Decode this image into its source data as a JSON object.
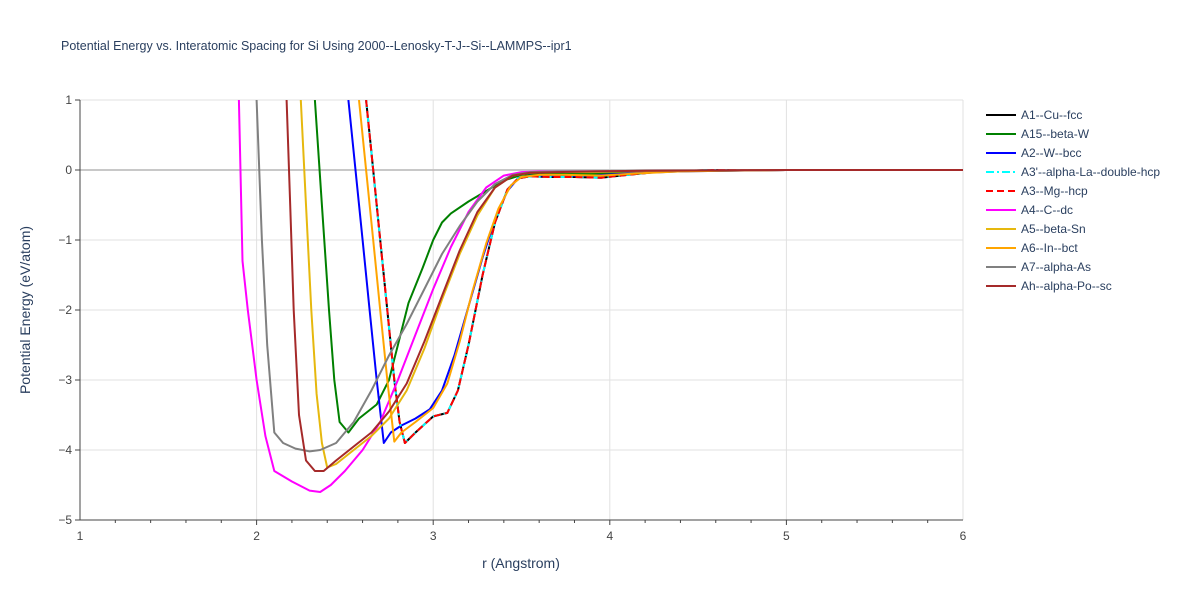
{
  "chart_data": {
    "type": "line",
    "title": "Potential Energy vs. Interatomic Spacing for Si Using 2000--Lenosky-T-J--Si--LAMMPS--ipr1",
    "xlabel": "r (Angstrom)",
    "ylabel": "Potential Energy (eV/atom)",
    "xlim": [
      1,
      6
    ],
    "ylim": [
      -5,
      1
    ],
    "x_ticks": [
      "1",
      "2",
      "3",
      "4",
      "5",
      "6"
    ],
    "y_ticks": [
      "1",
      "0",
      "−1",
      "−2",
      "−3",
      "−4",
      "−5"
    ],
    "grid": true,
    "legend_position": "right",
    "series": [
      {
        "name": "A1--Cu--fcc",
        "color": "#000000",
        "dash": "solid",
        "x": [
          2.62,
          2.66,
          2.7,
          2.74,
          2.78,
          2.81,
          2.84,
          2.9,
          3.0,
          3.08,
          3.14,
          3.2,
          3.28,
          3.35,
          3.42,
          3.48,
          3.55,
          3.65,
          3.8,
          3.95,
          4.1,
          4.3,
          4.6,
          5.0,
          6.0
        ],
        "y": [
          1.0,
          0.0,
          -1.0,
          -2.0,
          -3.0,
          -3.6,
          -3.9,
          -3.75,
          -3.52,
          -3.47,
          -3.15,
          -2.5,
          -1.5,
          -0.75,
          -0.28,
          -0.12,
          -0.09,
          -0.1,
          -0.1,
          -0.11,
          -0.07,
          -0.02,
          0.0,
          0.0,
          0.0
        ]
      },
      {
        "name": "A15--beta-W",
        "color": "#008000",
        "dash": "solid",
        "x": [
          2.33,
          2.37,
          2.41,
          2.44,
          2.47,
          2.52,
          2.58,
          2.68,
          2.75,
          2.8,
          2.86,
          2.94,
          3.0,
          3.05,
          3.1,
          3.2,
          3.3,
          3.4,
          3.5,
          3.6,
          3.8,
          4.0,
          4.3,
          5.0,
          6.0
        ],
        "y": [
          1.0,
          -0.5,
          -2.0,
          -3.0,
          -3.6,
          -3.75,
          -3.55,
          -3.35,
          -3.0,
          -2.5,
          -1.9,
          -1.4,
          -1.0,
          -0.75,
          -0.62,
          -0.45,
          -0.3,
          -0.15,
          -0.07,
          -0.05,
          -0.05,
          -0.05,
          -0.02,
          0.0,
          0.0
        ]
      },
      {
        "name": "A2--W--bcc",
        "color": "#0000ff",
        "dash": "solid",
        "x": [
          2.52,
          2.56,
          2.6,
          2.64,
          2.68,
          2.72,
          2.76,
          2.82,
          2.9,
          2.98,
          3.05,
          3.12,
          3.2,
          3.28,
          3.35,
          3.42,
          3.48,
          3.55,
          3.7,
          3.9,
          4.1,
          4.4,
          5.0,
          6.0
        ],
        "y": [
          1.0,
          0.0,
          -1.0,
          -2.0,
          -3.0,
          -3.9,
          -3.75,
          -3.65,
          -3.55,
          -3.42,
          -3.15,
          -2.65,
          -1.95,
          -1.25,
          -0.7,
          -0.3,
          -0.12,
          -0.08,
          -0.08,
          -0.08,
          -0.05,
          -0.02,
          0.0,
          0.0
        ]
      },
      {
        "name": "A3'--alpha-La--double-hcp",
        "color": "#00ffff",
        "dash": "dashdot",
        "x": [
          2.62,
          2.66,
          2.7,
          2.74,
          2.78,
          2.81,
          2.84,
          2.9,
          3.0,
          3.08,
          3.14,
          3.2,
          3.28,
          3.35,
          3.42,
          3.48,
          3.55,
          3.65,
          3.8,
          3.95,
          4.1,
          4.3,
          4.6,
          5.0,
          6.0
        ],
        "y": [
          1.0,
          0.0,
          -1.0,
          -2.0,
          -3.0,
          -3.6,
          -3.9,
          -3.75,
          -3.52,
          -3.47,
          -3.15,
          -2.5,
          -1.5,
          -0.75,
          -0.28,
          -0.12,
          -0.09,
          -0.1,
          -0.1,
          -0.11,
          -0.07,
          -0.02,
          0.0,
          0.0,
          0.0
        ]
      },
      {
        "name": "A3--Mg--hcp",
        "color": "#ff0000",
        "dash": "dash",
        "x": [
          2.62,
          2.66,
          2.7,
          2.74,
          2.78,
          2.81,
          2.84,
          2.9,
          3.0,
          3.08,
          3.14,
          3.2,
          3.28,
          3.35,
          3.42,
          3.48,
          3.55,
          3.65,
          3.8,
          3.95,
          4.1,
          4.3,
          4.6,
          5.0,
          6.0
        ],
        "y": [
          1.0,
          0.0,
          -1.0,
          -2.0,
          -3.0,
          -3.6,
          -3.9,
          -3.75,
          -3.52,
          -3.47,
          -3.15,
          -2.5,
          -1.5,
          -0.75,
          -0.28,
          -0.12,
          -0.09,
          -0.1,
          -0.1,
          -0.11,
          -0.07,
          -0.02,
          0.0,
          0.0,
          0.0
        ]
      },
      {
        "name": "A4--C--dc",
        "color": "#ff00ff",
        "dash": "solid",
        "x": [
          1.9,
          1.92,
          1.95,
          2.0,
          2.05,
          2.1,
          2.2,
          2.3,
          2.36,
          2.42,
          2.5,
          2.6,
          2.7,
          2.8,
          2.9,
          3.0,
          3.1,
          3.2,
          3.3,
          3.4,
          3.5,
          3.6,
          3.8,
          4.0,
          4.3,
          5.0,
          6.0
        ],
        "y": [
          1.0,
          -1.3,
          -2.0,
          -3.0,
          -3.8,
          -4.3,
          -4.45,
          -4.58,
          -4.6,
          -4.5,
          -4.3,
          -4.0,
          -3.6,
          -3.0,
          -2.35,
          -1.7,
          -1.1,
          -0.6,
          -0.25,
          -0.08,
          -0.03,
          -0.02,
          -0.02,
          -0.02,
          -0.01,
          0.0,
          0.0
        ]
      },
      {
        "name": "A5--beta-Sn",
        "color": "#e6b80e",
        "dash": "solid",
        "x": [
          2.25,
          2.28,
          2.31,
          2.34,
          2.37,
          2.4,
          2.45,
          2.55,
          2.65,
          2.75,
          2.85,
          2.95,
          3.05,
          3.15,
          3.25,
          3.35,
          3.45,
          3.55,
          3.7,
          3.9,
          4.1,
          4.4,
          5.0,
          6.0
        ],
        "y": [
          1.0,
          -0.5,
          -2.0,
          -3.2,
          -3.9,
          -4.25,
          -4.2,
          -4.0,
          -3.8,
          -3.55,
          -3.15,
          -2.55,
          -1.85,
          -1.2,
          -0.65,
          -0.25,
          -0.08,
          -0.04,
          -0.03,
          -0.03,
          -0.02,
          -0.01,
          0.0,
          0.0
        ]
      },
      {
        "name": "A6--In--bct",
        "color": "#ffa500",
        "dash": "solid",
        "x": [
          2.58,
          2.62,
          2.66,
          2.7,
          2.74,
          2.78,
          2.82,
          2.9,
          3.0,
          3.08,
          3.15,
          3.22,
          3.3,
          3.37,
          3.44,
          3.5,
          3.6,
          3.75,
          3.95,
          4.15,
          4.4,
          5.0,
          6.0
        ],
        "y": [
          1.0,
          0.0,
          -1.0,
          -2.0,
          -3.0,
          -3.88,
          -3.75,
          -3.6,
          -3.4,
          -3.05,
          -2.45,
          -1.75,
          -1.05,
          -0.55,
          -0.22,
          -0.1,
          -0.07,
          -0.07,
          -0.08,
          -0.05,
          -0.02,
          0.0,
          0.0
        ]
      },
      {
        "name": "A7--alpha-As",
        "color": "#808080",
        "dash": "solid",
        "x": [
          2.0,
          2.03,
          2.06,
          2.1,
          2.15,
          2.22,
          2.3,
          2.36,
          2.45,
          2.55,
          2.65,
          2.75,
          2.85,
          2.95,
          3.05,
          3.15,
          3.25,
          3.35,
          3.45,
          3.55,
          3.7,
          3.9,
          4.2,
          5.0,
          6.0
        ],
        "y": [
          1.0,
          -1.0,
          -2.5,
          -3.75,
          -3.9,
          -3.98,
          -4.02,
          -4.0,
          -3.9,
          -3.6,
          -3.15,
          -2.65,
          -2.2,
          -1.7,
          -1.2,
          -0.8,
          -0.45,
          -0.2,
          -0.07,
          -0.03,
          -0.02,
          -0.02,
          -0.01,
          0.0,
          0.0
        ]
      },
      {
        "name": "Ah--alpha-Po--sc",
        "color": "#a52a2a",
        "dash": "solid",
        "x": [
          2.17,
          2.19,
          2.21,
          2.24,
          2.28,
          2.33,
          2.38,
          2.45,
          2.55,
          2.65,
          2.75,
          2.85,
          2.95,
          3.05,
          3.15,
          3.25,
          3.35,
          3.45,
          3.55,
          3.7,
          3.9,
          4.2,
          5.0,
          6.0
        ],
        "y": [
          1.0,
          -0.5,
          -2.0,
          -3.5,
          -4.15,
          -4.3,
          -4.3,
          -4.15,
          -3.95,
          -3.75,
          -3.45,
          -3.05,
          -2.45,
          -1.8,
          -1.15,
          -0.6,
          -0.25,
          -0.08,
          -0.04,
          -0.03,
          -0.02,
          -0.01,
          0.0,
          0.0
        ]
      }
    ]
  }
}
